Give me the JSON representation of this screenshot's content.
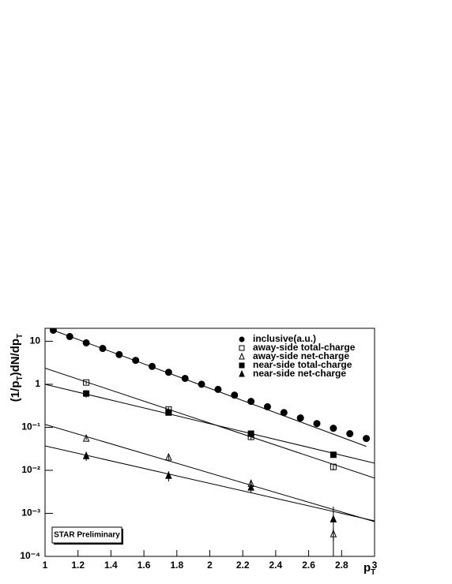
{
  "chart_data": {
    "type": "scatter",
    "y_label": [
      {
        "text": "(1/p"
      },
      {
        "text": "T",
        "sub": true
      },
      {
        "text": ")dN/dp"
      },
      {
        "text": "T",
        "sub": true
      }
    ],
    "x_label": [
      {
        "text": "p"
      },
      {
        "text": "T",
        "sub": true
      }
    ],
    "annotation": "STAR Preliminary",
    "log_y": true,
    "xlim": [
      1,
      3
    ],
    "xticks": [
      1,
      1.2,
      1.4,
      1.6,
      1.8,
      2,
      2.2,
      2.4,
      2.6,
      2.8,
      3
    ],
    "ylim": [
      0.0001,
      20
    ],
    "yticks": [
      {
        "value": 0.0001,
        "label": "10⁻⁴"
      },
      {
        "value": 0.001,
        "label": "10⁻³"
      },
      {
        "value": 0.01,
        "label": "10⁻²"
      },
      {
        "value": 0.1,
        "label": "10⁻¹"
      },
      1,
      10
    ],
    "legend": "top-right",
    "series": [
      {
        "name": "inclusive(a.u.)",
        "marker": "circle",
        "filled": true,
        "color": "#000000",
        "x": [
          1.05,
          1.15,
          1.25,
          1.35,
          1.45,
          1.55,
          1.65,
          1.75,
          1.85,
          1.95,
          2.05,
          2.15,
          2.25,
          2.35,
          2.45,
          2.55,
          2.65,
          2.75,
          2.85,
          2.95
        ],
        "values": [
          18,
          12.9,
          9.2,
          6.8,
          4.9,
          3.6,
          2.6,
          1.9,
          1.37,
          1.0,
          0.76,
          0.56,
          0.4,
          0.3,
          0.22,
          0.165,
          0.122,
          0.095,
          0.071,
          0.055
        ],
        "fit": {
          "x": [
            1.05,
            2.95
          ],
          "values": [
            18,
            0.036
          ]
        }
      },
      {
        "name": "away-side total-charge",
        "marker": "square",
        "filled": false,
        "color": "#000000",
        "x": [
          1.25,
          1.75,
          2.25,
          2.75
        ],
        "values": [
          1.1,
          0.26,
          0.06,
          0.012
        ],
        "errors": [
          0.1,
          0.03,
          0.008,
          0.002
        ],
        "fit": {
          "x": [
            1,
            3
          ],
          "values": [
            2.37,
            0.0066
          ]
        }
      },
      {
        "name": "away-side net-charge",
        "marker": "triangle",
        "filled": false,
        "color": "#000000",
        "x": [
          1.25,
          1.75,
          2.25,
          2.75
        ],
        "values": [
          0.055,
          0.02,
          0.0049,
          0.00033
        ],
        "errors": [
          0.004,
          0.002,
          0.001,
          0.0001
        ],
        "fit": {
          "x": [
            1,
            3
          ],
          "values": [
            0.117,
            0.00064
          ]
        }
      },
      {
        "name": "near-side total-charge",
        "marker": "square",
        "filled": true,
        "color": "#000000",
        "x": [
          1.25,
          1.75,
          2.25,
          2.75
        ],
        "values": [
          0.61,
          0.22,
          0.071,
          0.023
        ],
        "errors": [
          0.12,
          0.03,
          0.008,
          0.003
        ],
        "fit": {
          "x": [
            1,
            3
          ],
          "values": [
            1.0,
            0.0147
          ]
        }
      },
      {
        "name": "near-side net-charge",
        "marker": "triangle",
        "filled": true,
        "color": "#000000",
        "x": [
          1.25,
          1.75,
          2.25,
          2.75
        ],
        "values": [
          0.0216,
          0.0075,
          0.004,
          0.00073
        ],
        "errors": [
          0.005,
          0.002,
          0.001,
          0.0007
        ],
        "fit": {
          "x": [
            1,
            3
          ],
          "values": [
            0.037,
            0.00067
          ]
        }
      }
    ]
  }
}
